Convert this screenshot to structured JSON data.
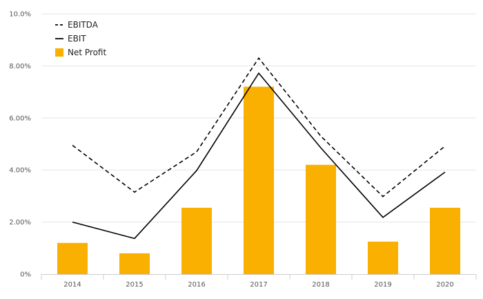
{
  "chart_data": {
    "type": "bar",
    "categories": [
      "2014",
      "2015",
      "2016",
      "2017",
      "2018",
      "2019",
      "2020"
    ],
    "series": [
      {
        "name": "EBITDA",
        "kind": "line",
        "style": "dashed",
        "color": "#000000",
        "values": [
          4.95,
          3.15,
          4.7,
          8.3,
          5.3,
          2.98,
          4.92
        ]
      },
      {
        "name": "EBIT",
        "kind": "line",
        "style": "solid",
        "color": "#000000",
        "values": [
          2.0,
          1.37,
          3.98,
          7.72,
          4.85,
          2.18,
          3.92
        ]
      },
      {
        "name": "Net Profit",
        "kind": "bar",
        "color": "#F9B000",
        "values": [
          1.2,
          0.8,
          2.55,
          7.2,
          4.2,
          1.25,
          2.55
        ]
      }
    ],
    "ylim": [
      0,
      10
    ],
    "yticks": [
      0,
      2,
      4,
      6,
      8,
      10
    ],
    "ytick_labels": [
      "0%",
      "2.00%",
      "4.00%",
      "6.00%",
      "8.00%",
      "10.0%"
    ],
    "grid": true,
    "legend": "top-left"
  }
}
